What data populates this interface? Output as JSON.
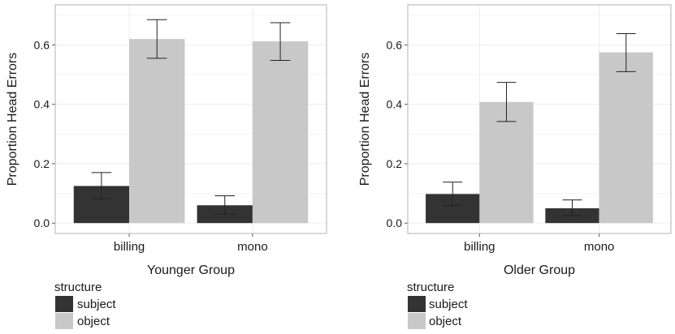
{
  "chart_data": [
    {
      "type": "bar",
      "categories": [
        "billing",
        "mono"
      ],
      "series": [
        {
          "name": "subject",
          "values": [
            0.125,
            0.06
          ],
          "error_low": [
            0.082,
            0.03
          ],
          "error_high": [
            0.17,
            0.092
          ]
        },
        {
          "name": "object",
          "values": [
            0.62,
            0.612
          ],
          "error_low": [
            0.555,
            0.548
          ],
          "error_high": [
            0.685,
            0.675
          ]
        }
      ],
      "xlabel": "Younger Group",
      "ylabel": "Proportion Head Errors",
      "ylim": [
        -0.035,
        0.735
      ],
      "yticks": [
        0.0,
        0.2,
        0.4,
        0.6
      ],
      "ytick_labels": [
        "0.0",
        "0.2",
        "0.4",
        "0.6"
      ],
      "grid": true,
      "legend": {
        "title": "structure",
        "entries": [
          "subject",
          "object"
        ],
        "placement": "bottom-left"
      }
    },
    {
      "type": "bar",
      "categories": [
        "billing",
        "mono"
      ],
      "series": [
        {
          "name": "subject",
          "values": [
            0.098,
            0.05
          ],
          "error_low": [
            0.06,
            0.025
          ],
          "error_high": [
            0.138,
            0.078
          ]
        },
        {
          "name": "object",
          "values": [
            0.408,
            0.575
          ],
          "error_low": [
            0.342,
            0.51
          ],
          "error_high": [
            0.474,
            0.638
          ]
        }
      ],
      "xlabel": "Older Group",
      "ylabel": "Proportion Head Errors",
      "ylim": [
        -0.035,
        0.735
      ],
      "yticks": [
        0.0,
        0.2,
        0.4,
        0.6
      ],
      "ytick_labels": [
        "0.0",
        "0.2",
        "0.4",
        "0.6"
      ],
      "grid": true,
      "legend": {
        "title": "structure",
        "entries": [
          "subject",
          "object"
        ],
        "placement": "bottom-left"
      }
    }
  ],
  "colors": {
    "subject": "#333333",
    "object": "#c8c8c8",
    "grid": "#ececec",
    "frame": "#b3b3b3",
    "text": "#1a1a1a"
  }
}
